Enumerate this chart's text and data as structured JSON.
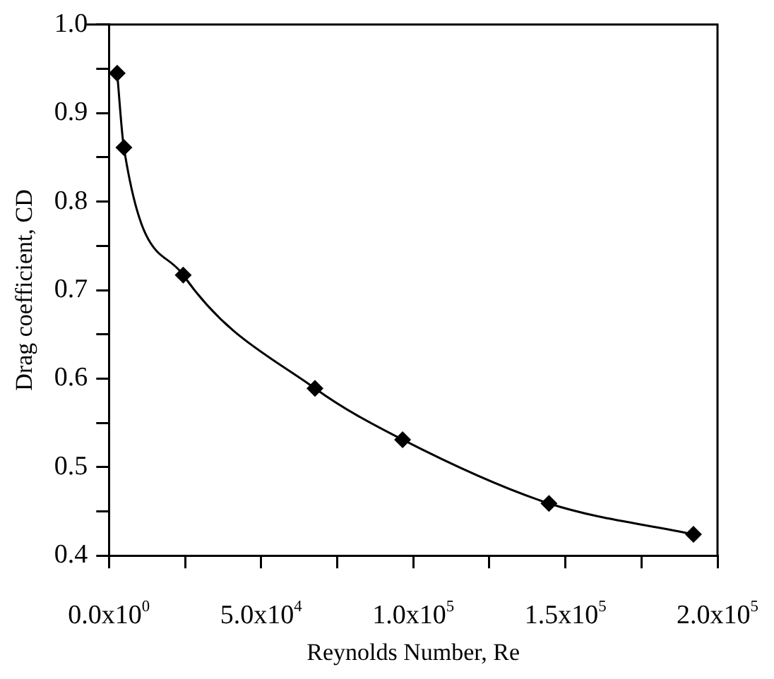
{
  "chart_data": {
    "type": "line",
    "xlabel": "Reynolds Number, Re",
    "ylabel": "Drag coefficient, CD",
    "x": [
      2700,
      4900,
      24400,
      67700,
      96500,
      144600,
      192100
    ],
    "series": [
      {
        "color": "#000000",
        "values": [
          0.945,
          0.861,
          0.717,
          0.589,
          0.531,
          0.459,
          0.424
        ]
      }
    ],
    "xlim": [
      0,
      200000
    ],
    "xticks": [
      {
        "value": 0,
        "label": "0.0x10$^{0}$"
      },
      {
        "value": 25000,
        "label": null
      },
      {
        "value": 50000,
        "label": "5.0x10$^{4}$"
      },
      {
        "value": 75000,
        "label": null
      },
      {
        "value": 100000,
        "label": "1.0x10$^{5}$"
      },
      {
        "value": 125000,
        "label": null
      },
      {
        "value": 150000,
        "label": "1.5x10$^{5}$"
      },
      {
        "value": 175000,
        "label": null
      },
      {
        "value": 200000,
        "label": "2.0x10$^{5}$"
      }
    ],
    "ylim": [
      0.4,
      1.0
    ],
    "yticks": [
      {
        "value": 0.4,
        "label": "0.4"
      },
      {
        "value": 0.45,
        "label": null
      },
      {
        "value": 0.5,
        "label": "0.5"
      },
      {
        "value": 0.55,
        "label": null
      },
      {
        "value": 0.6,
        "label": "0.6"
      },
      {
        "value": 0.65,
        "label": null
      },
      {
        "value": 0.7,
        "label": "0.7"
      },
      {
        "value": 0.75,
        "label": null
      },
      {
        "value": 0.8,
        "label": "0.8"
      },
      {
        "value": 0.85,
        "label": null
      },
      {
        "value": 0.9,
        "label": "0.9"
      },
      {
        "value": 0.95,
        "label": null
      },
      {
        "value": 1.0,
        "label": "1.0"
      }
    ],
    "grid": false,
    "legend": false,
    "marker": "diamond",
    "line_style": "solid"
  }
}
